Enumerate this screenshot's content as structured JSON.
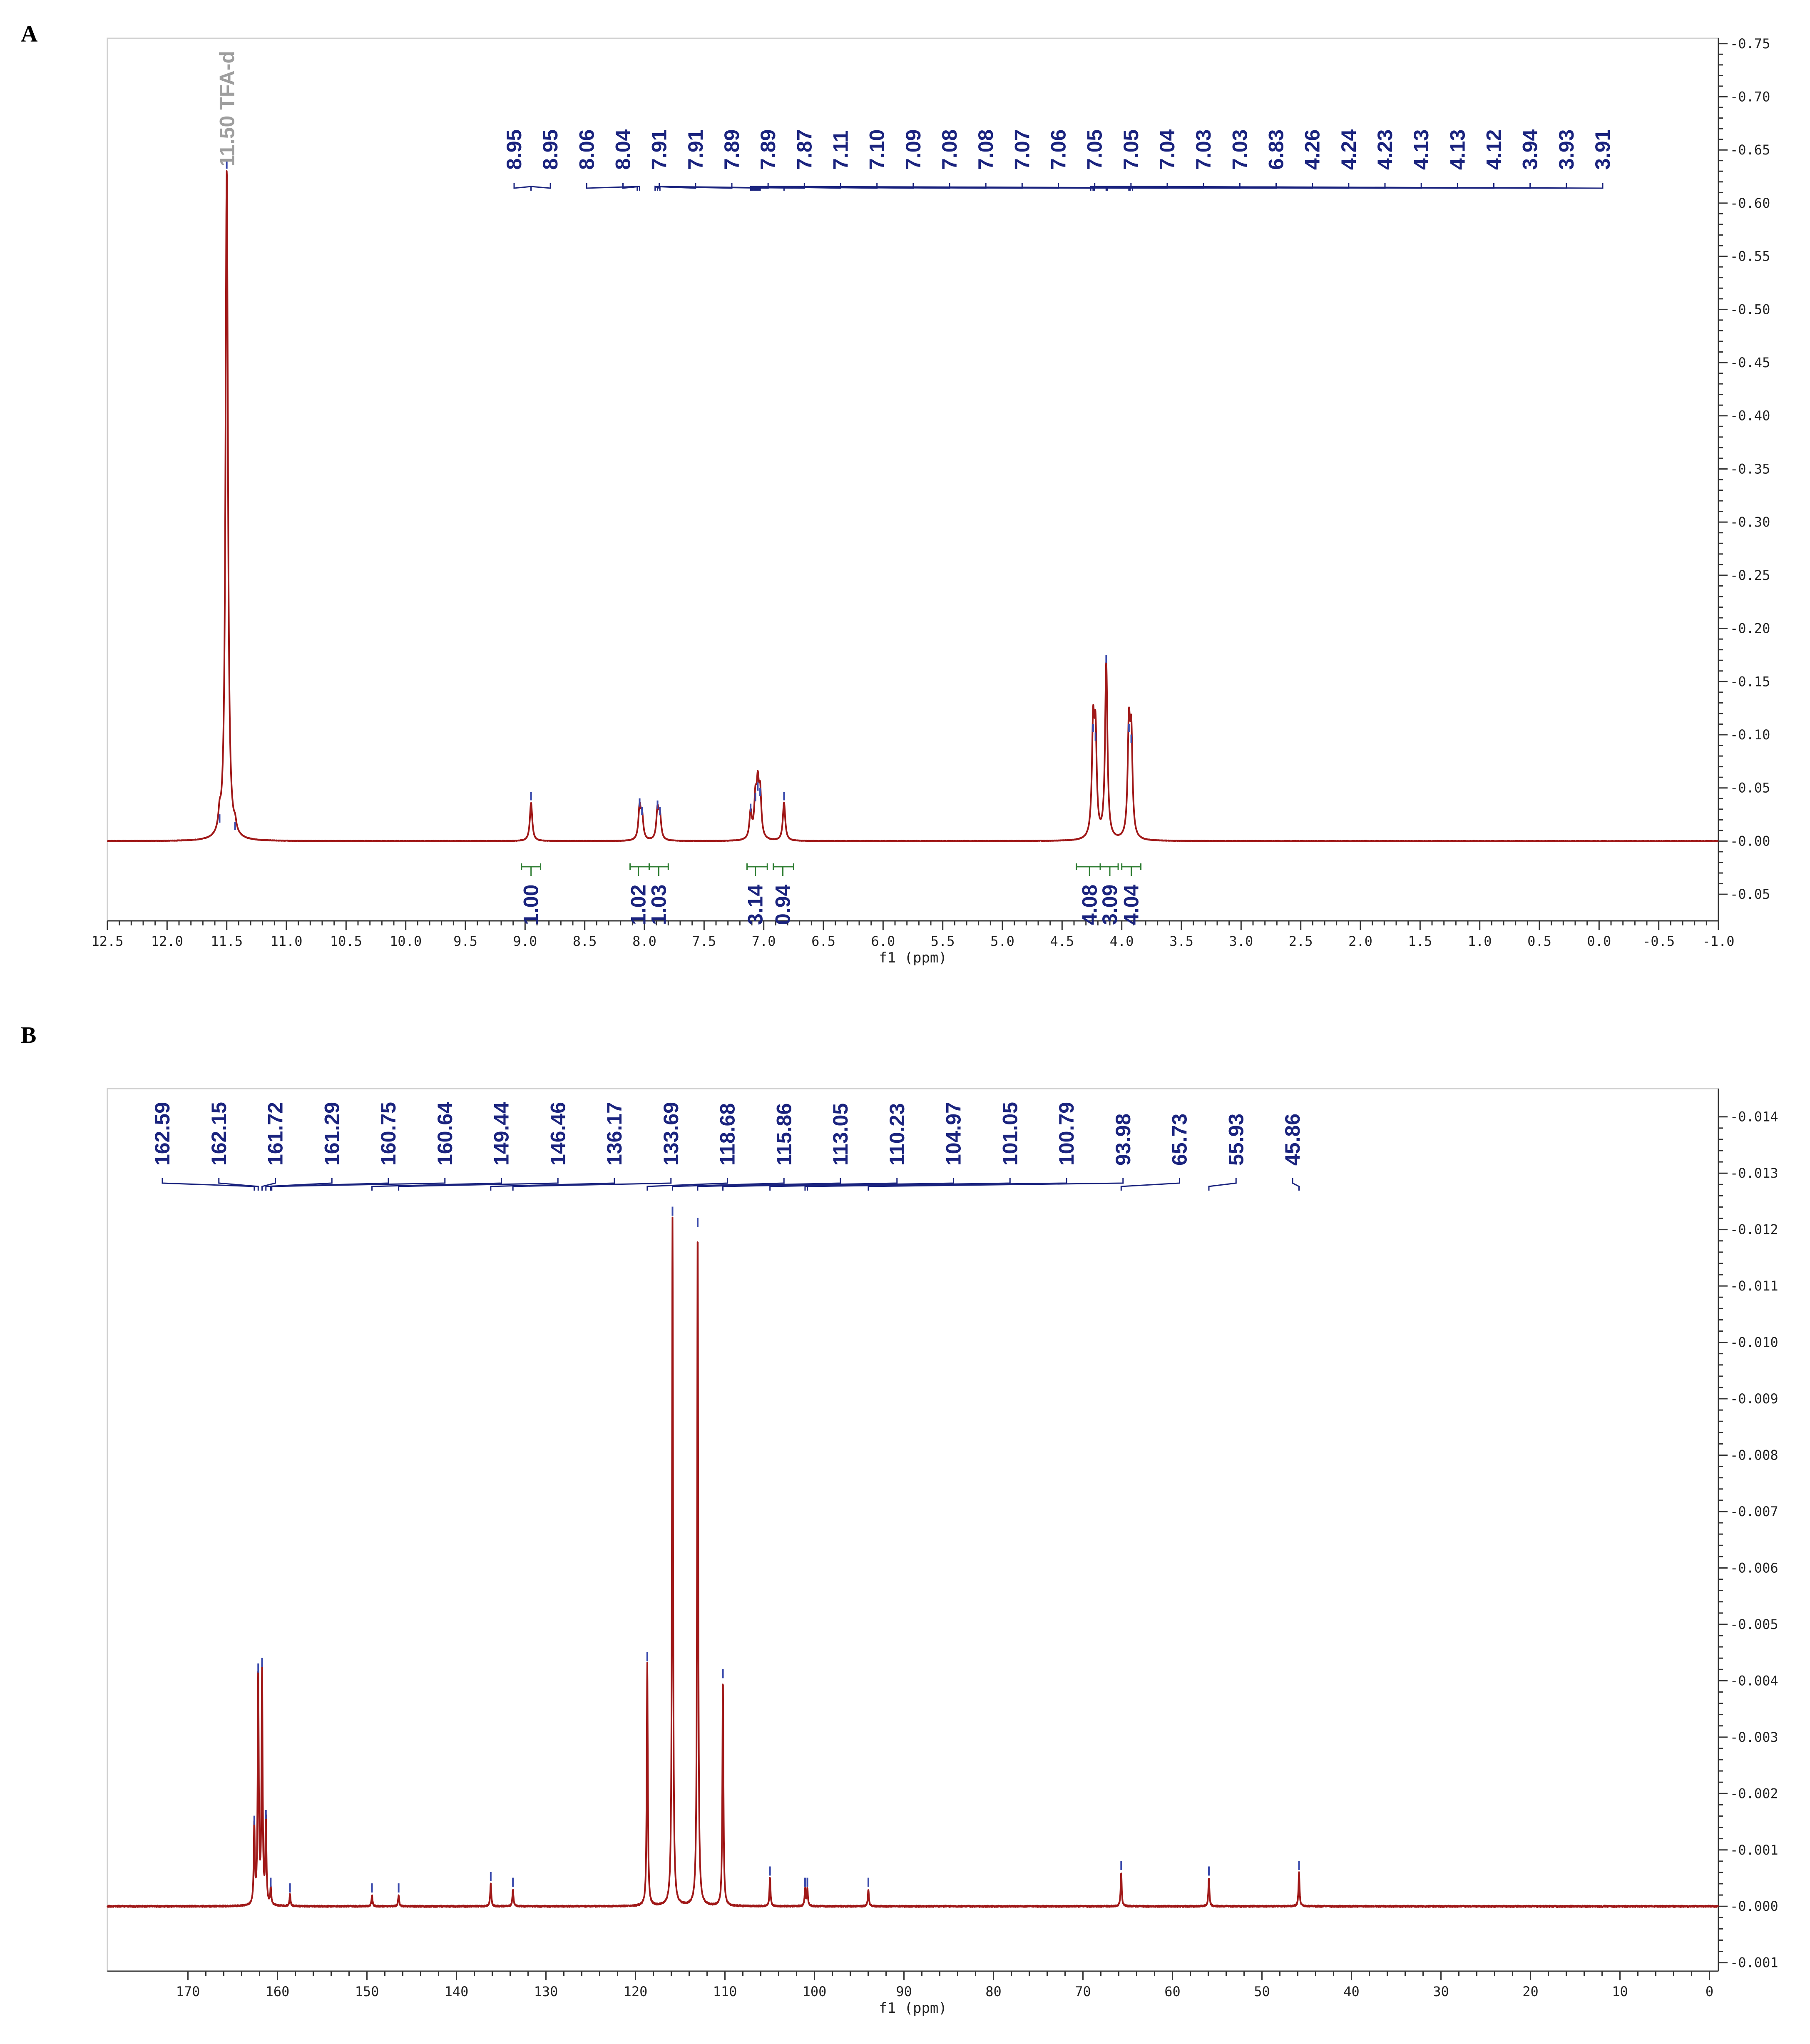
{
  "panels": [
    {
      "letter": "A"
    },
    {
      "letter": "B"
    }
  ],
  "chart_data": [
    {
      "type": "line",
      "xlabel": "f1 (ppm)",
      "xlim": [
        12.5,
        -1.0
      ],
      "ylim": [
        -0.075,
        0.755
      ],
      "x_ticks": [
        "12.5",
        "12.0",
        "11.5",
        "11.0",
        "10.5",
        "10.0",
        "9.5",
        "9.0",
        "8.5",
        "8.0",
        "7.5",
        "7.0",
        "6.5",
        "6.0",
        "5.5",
        "5.0",
        "4.5",
        "4.0",
        "3.5",
        "3.0",
        "2.5",
        "2.0",
        "1.5",
        "1.0",
        "0.5",
        "0.0",
        "-0.5",
        "-1.0"
      ],
      "x_tick_values": [
        12.5,
        12.0,
        11.5,
        11.0,
        10.5,
        10.0,
        9.5,
        9.0,
        8.5,
        8.0,
        7.5,
        7.0,
        6.5,
        6.0,
        5.5,
        5.0,
        4.5,
        4.0,
        3.5,
        3.0,
        2.5,
        2.0,
        1.5,
        1.0,
        0.5,
        0.0,
        -0.5,
        -1.0
      ],
      "y_ticks": [
        "0.75",
        "0.70",
        "0.65",
        "0.60",
        "0.55",
        "0.50",
        "0.45",
        "0.40",
        "0.35",
        "0.30",
        "0.25",
        "0.20",
        "0.15",
        "0.10",
        "0.05",
        "0.00",
        "-0.05"
      ],
      "y_tick_values": [
        0.75,
        0.7,
        0.65,
        0.6,
        0.55,
        0.5,
        0.45,
        0.4,
        0.35,
        0.3,
        0.25,
        0.2,
        0.15,
        0.1,
        0.05,
        0.0,
        -0.05
      ],
      "solvent_label": "11.50 TFA-d",
      "peaks": [
        {
          "x": 11.5,
          "y": 0.63
        },
        {
          "x": 11.56,
          "y": 0.015
        },
        {
          "x": 11.43,
          "y": 0.008
        },
        {
          "x": 8.95,
          "y": 0.036
        },
        {
          "x": 8.04,
          "y": 0.03
        },
        {
          "x": 8.02,
          "y": 0.022
        },
        {
          "x": 7.89,
          "y": 0.028
        },
        {
          "x": 7.87,
          "y": 0.022
        },
        {
          "x": 7.11,
          "y": 0.025
        },
        {
          "x": 7.07,
          "y": 0.035
        },
        {
          "x": 7.05,
          "y": 0.045
        },
        {
          "x": 7.03,
          "y": 0.04
        },
        {
          "x": 6.83,
          "y": 0.036
        },
        {
          "x": 4.24,
          "y": 0.1
        },
        {
          "x": 4.22,
          "y": 0.092
        },
        {
          "x": 4.13,
          "y": 0.165
        },
        {
          "x": 3.94,
          "y": 0.1
        },
        {
          "x": 3.92,
          "y": 0.09
        }
      ],
      "peak_labels": [
        "8.95",
        "8.95",
        "8.06",
        "8.04",
        "7.91",
        "7.91",
        "7.89",
        "7.89",
        "7.87",
        "7.11",
        "7.10",
        "7.09",
        "7.08",
        "7.08",
        "7.07",
        "7.06",
        "7.05",
        "7.05",
        "7.04",
        "7.03",
        "7.03",
        "6.83",
        "4.26",
        "4.24",
        "4.23",
        "4.13",
        "4.13",
        "4.12",
        "3.94",
        "3.93",
        "3.91"
      ],
      "integrals": [
        {
          "label": "1.00",
          "x": 8.95,
          "from": 9.03,
          "to": 8.87
        },
        {
          "label": "1.02",
          "x": 8.05,
          "from": 8.12,
          "to": 7.96
        },
        {
          "label": "1.03",
          "x": 7.88,
          "from": 7.96,
          "to": 7.8
        },
        {
          "label": "3.14",
          "x": 7.07,
          "from": 7.14,
          "to": 6.97
        },
        {
          "label": "0.94",
          "x": 6.84,
          "from": 6.92,
          "to": 6.75
        },
        {
          "label": "4.08",
          "x": 4.27,
          "from": 4.38,
          "to": 4.18
        },
        {
          "label": "3.09",
          "x": 4.1,
          "from": 4.18,
          "to": 4.03
        },
        {
          "label": "4.04",
          "x": 3.92,
          "from": 4.0,
          "to": 3.84
        }
      ]
    },
    {
      "type": "line",
      "xlabel": "f1 (ppm)",
      "xlim": [
        179,
        -1
      ],
      "ylim": [
        -0.00115,
        0.0145
      ],
      "x_ticks": [
        "170",
        "160",
        "150",
        "140",
        "130",
        "120",
        "110",
        "100",
        "90",
        "80",
        "70",
        "60",
        "50",
        "40",
        "30",
        "20",
        "10",
        "0"
      ],
      "x_tick_values": [
        170,
        160,
        150,
        140,
        130,
        120,
        110,
        100,
        90,
        80,
        70,
        60,
        50,
        40,
        30,
        20,
        10,
        0
      ],
      "y_ticks": [
        "0.014",
        "0.013",
        "0.012",
        "0.011",
        "0.010",
        "0.009",
        "0.008",
        "0.007",
        "0.006",
        "0.005",
        "0.004",
        "0.003",
        "0.002",
        "0.001",
        "0.000",
        "-0.001"
      ],
      "y_tick_values": [
        0.014,
        0.013,
        0.012,
        0.011,
        0.01,
        0.009,
        0.008,
        0.007,
        0.006,
        0.005,
        0.004,
        0.003,
        0.002,
        0.001,
        0.0,
        -0.001
      ],
      "peaks": [
        {
          "x": 162.59,
          "y": 0.0014
        },
        {
          "x": 162.15,
          "y": 0.0041
        },
        {
          "x": 161.72,
          "y": 0.0042
        },
        {
          "x": 161.29,
          "y": 0.0015
        },
        {
          "x": 160.75,
          "y": 0.0003
        },
        {
          "x": 158.6,
          "y": 0.0002
        },
        {
          "x": 149.44,
          "y": 0.0002
        },
        {
          "x": 146.46,
          "y": 0.0002
        },
        {
          "x": 136.17,
          "y": 0.0004
        },
        {
          "x": 133.69,
          "y": 0.0003
        },
        {
          "x": 118.68,
          "y": 0.0043
        },
        {
          "x": 115.86,
          "y": 0.0122
        },
        {
          "x": 113.05,
          "y": 0.012
        },
        {
          "x": 110.23,
          "y": 0.004
        },
        {
          "x": 104.97,
          "y": 0.0005
        },
        {
          "x": 101.05,
          "y": 0.0003
        },
        {
          "x": 100.79,
          "y": 0.0003
        },
        {
          "x": 93.98,
          "y": 0.0003
        },
        {
          "x": 65.73,
          "y": 0.0006
        },
        {
          "x": 55.93,
          "y": 0.0005
        },
        {
          "x": 45.86,
          "y": 0.0006
        }
      ],
      "peak_labels": [
        "162.59",
        "162.15",
        "161.72",
        "161.29",
        "160.75",
        "160.64",
        "149.44",
        "146.46",
        "136.17",
        "133.69",
        "118.68",
        "115.86",
        "113.05",
        "110.23",
        "104.97",
        "101.05",
        "100.79",
        "93.98",
        "65.73",
        "55.93",
        "45.86"
      ]
    }
  ]
}
